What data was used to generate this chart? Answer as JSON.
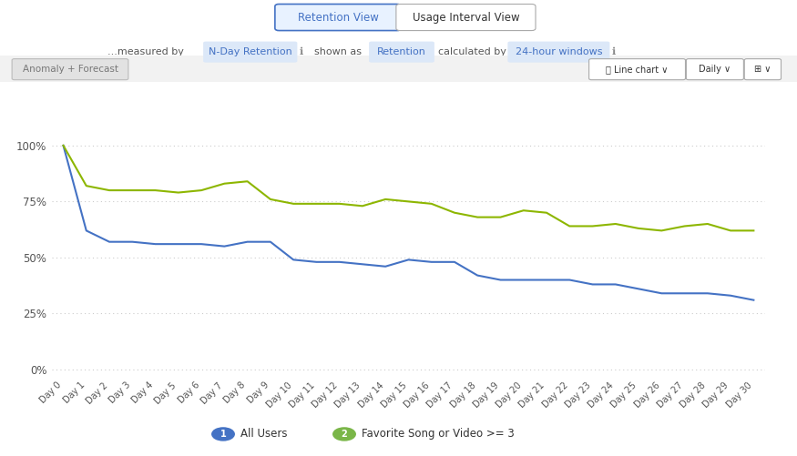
{
  "days": [
    "Day 0",
    "Day 1",
    "Day 2",
    "Day 3",
    "Day 4",
    "Day 5",
    "Day 6",
    "Day 7",
    "Day 8",
    "Day 9",
    "Day 10",
    "Day 11",
    "Day 12",
    "Day 13",
    "Day 14",
    "Day 15",
    "Day 16",
    "Day 17",
    "Day 18",
    "Day 19",
    "Day 20",
    "Day 21",
    "Day 22",
    "Day 23",
    "Day 24",
    "Day 25",
    "Day 26",
    "Day 27",
    "Day 28",
    "Day 29",
    "Day 30"
  ],
  "all_users": [
    1.0,
    0.62,
    0.57,
    0.57,
    0.56,
    0.56,
    0.56,
    0.55,
    0.57,
    0.57,
    0.49,
    0.48,
    0.48,
    0.47,
    0.46,
    0.49,
    0.48,
    0.48,
    0.42,
    0.4,
    0.4,
    0.4,
    0.4,
    0.38,
    0.38,
    0.36,
    0.34,
    0.34,
    0.34,
    0.33,
    0.31
  ],
  "favorite_users": [
    1.0,
    0.82,
    0.8,
    0.8,
    0.8,
    0.79,
    0.8,
    0.83,
    0.84,
    0.76,
    0.74,
    0.74,
    0.74,
    0.73,
    0.76,
    0.75,
    0.74,
    0.7,
    0.68,
    0.68,
    0.71,
    0.7,
    0.64,
    0.64,
    0.65,
    0.63,
    0.62,
    0.64,
    0.65,
    0.62,
    0.62
  ],
  "all_users_color": "#4472c4",
  "favorite_users_color": "#8db600",
  "background_color": "#ffffff",
  "grid_color": "#cccccc",
  "yticks": [
    0.0,
    0.25,
    0.5,
    0.75,
    1.0
  ],
  "ytick_labels": [
    "0%",
    "25%",
    "50%",
    "75%",
    "100%"
  ],
  "ylim": [
    -0.03,
    1.1
  ],
  "legend_label_1": "All Users",
  "legend_label_2": "Favorite Song or Video >= 3",
  "legend_color_1": "#4472c4",
  "legend_color_2": "#7ab648",
  "toolbar_bg": "#f2f2f2"
}
